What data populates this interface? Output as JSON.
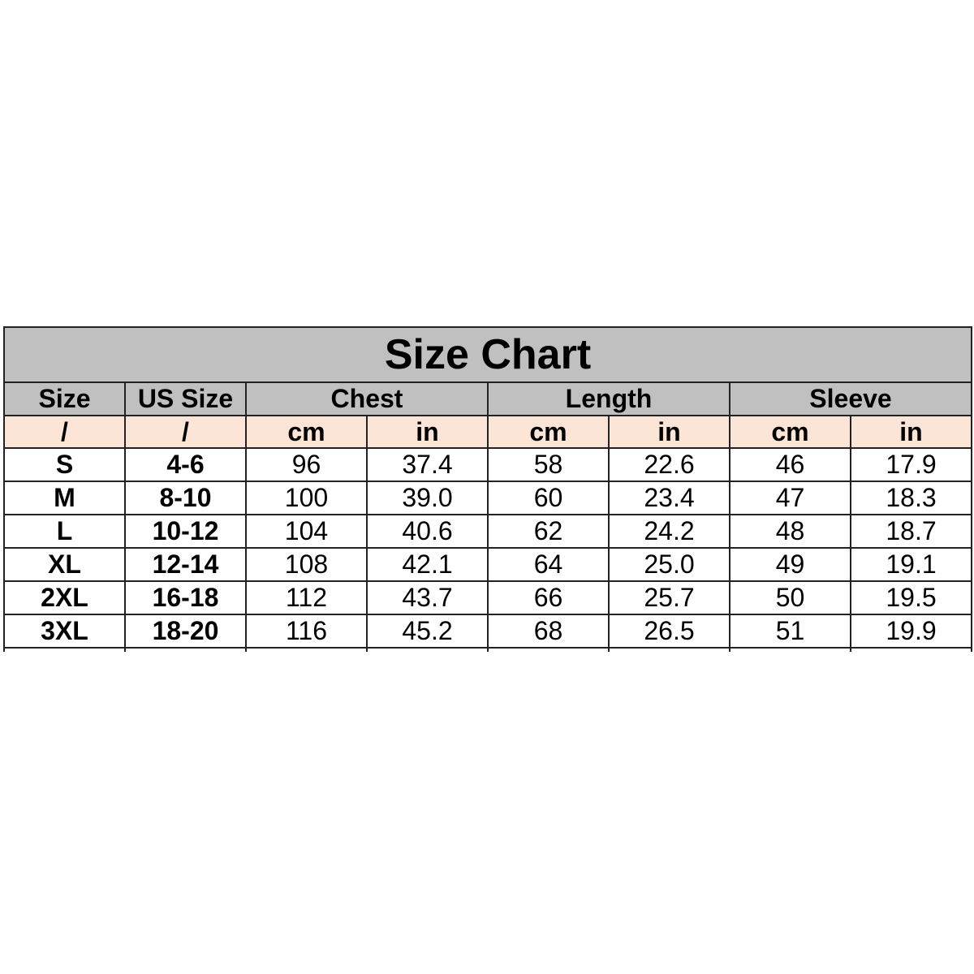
{
  "title": "Size Chart",
  "headers": [
    "Size",
    "US Size",
    "Chest",
    "Length",
    "Sleeve"
  ],
  "units": [
    "/",
    "/",
    "cm",
    "in",
    "cm",
    "in",
    "cm",
    "in"
  ],
  "rows": [
    [
      "S",
      "4-6",
      "96",
      "37.4",
      "58",
      "22.6",
      "46",
      "17.9"
    ],
    [
      "M",
      "8-10",
      "100",
      "39.0",
      "60",
      "23.4",
      "47",
      "18.3"
    ],
    [
      "L",
      "10-12",
      "104",
      "40.6",
      "62",
      "24.2",
      "48",
      "18.7"
    ],
    [
      "XL",
      "12-14",
      "108",
      "42.1",
      "64",
      "25.0",
      "49",
      "19.1"
    ],
    [
      "2XL",
      "16-18",
      "112",
      "43.7",
      "66",
      "25.7",
      "50",
      "19.5"
    ],
    [
      "3XL",
      "18-20",
      "116",
      "45.2",
      "68",
      "26.5",
      "51",
      "19.9"
    ]
  ],
  "colors": {
    "header_bg": "#c0c0c0",
    "unit_row_bg": "#fce4d6"
  }
}
